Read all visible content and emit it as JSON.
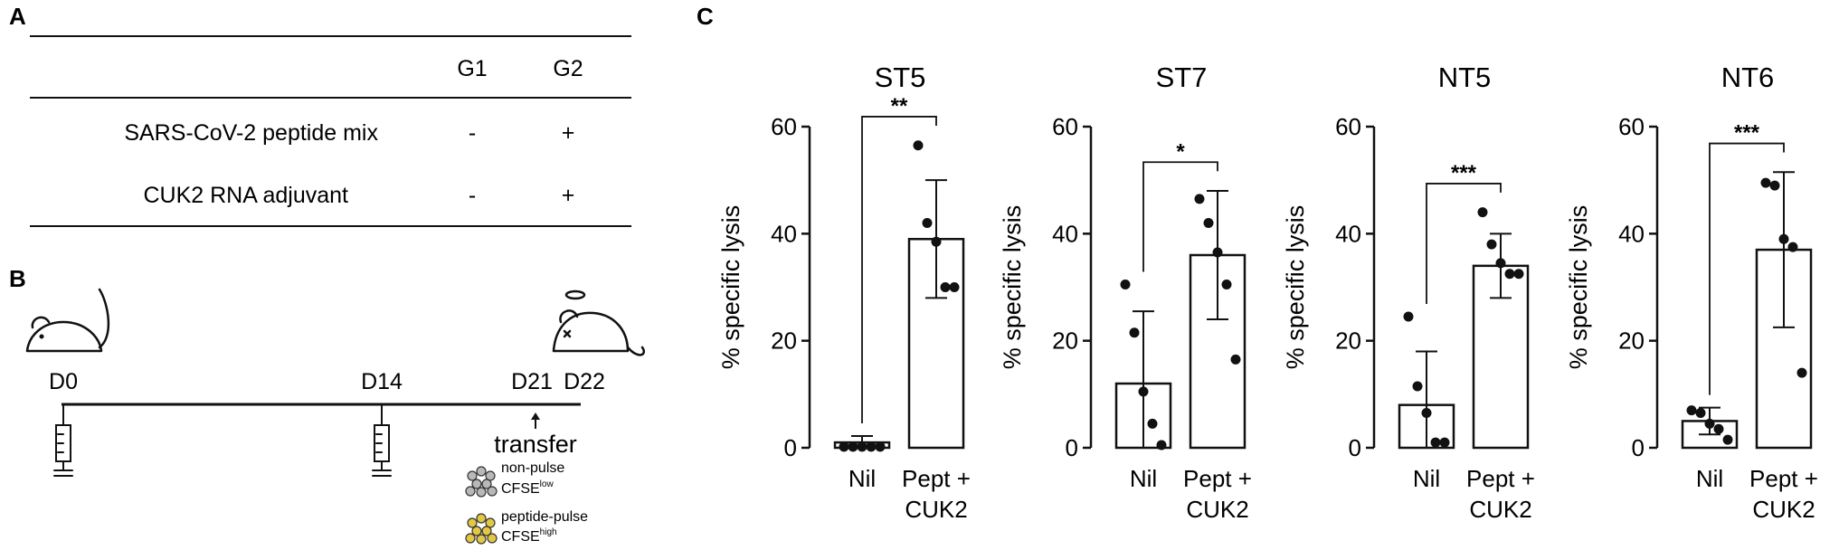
{
  "panels": {
    "a": {
      "letter": "A",
      "table": {
        "columns": [
          "G1",
          "G2"
        ],
        "rows": [
          {
            "label": "SARS-CoV-2 peptide mix",
            "values": [
              "-",
              "+"
            ]
          },
          {
            "label": "CUK2 RNA adjuvant",
            "values": [
              "-",
              "+"
            ]
          }
        ]
      }
    },
    "b": {
      "letter": "B",
      "days": [
        "D0",
        "D14",
        "D21",
        "D22"
      ],
      "transfer_label": "transfer",
      "legend": [
        {
          "line1": "non-pulse",
          "base": "CFSE",
          "sup": "low",
          "color": "#b8b8b8"
        },
        {
          "line1": "peptide-pulse",
          "base": "CFSE",
          "sup": "high",
          "color": "#e3c744"
        }
      ]
    },
    "c": {
      "letter": "C"
    }
  },
  "chart_data": [
    {
      "type": "bar",
      "title": "ST5",
      "ylabel": "% specific lysis",
      "ylim": [
        0,
        60
      ],
      "yticks": [
        0,
        20,
        40,
        60
      ],
      "categories": [
        "Nil",
        "Pept + CUK2"
      ],
      "category_lines": [
        [
          "Nil"
        ],
        [
          "Pept +",
          "CUK2"
        ]
      ],
      "means": [
        1.0,
        39.0
      ],
      "errors": [
        1.2,
        11.0
      ],
      "points": [
        [
          0.2,
          0.2,
          0.2,
          0.2,
          0.2
        ],
        [
          56.5,
          42.0,
          38.5,
          30.0,
          30.0
        ]
      ],
      "significance": "**"
    },
    {
      "type": "bar",
      "title": "ST7",
      "ylabel": "% specific lysis",
      "ylim": [
        0,
        60
      ],
      "yticks": [
        0,
        20,
        40,
        60
      ],
      "categories": [
        "Nil",
        "Pept + CUK2"
      ],
      "category_lines": [
        [
          "Nil"
        ],
        [
          "Pept +",
          "CUK2"
        ]
      ],
      "means": [
        12.0,
        36.0
      ],
      "errors": [
        13.5,
        12.0
      ],
      "points": [
        [
          30.5,
          21.5,
          10.5,
          4.5,
          0.5
        ],
        [
          46.5,
          42.0,
          36.5,
          30.5,
          16.5
        ]
      ],
      "significance": "*"
    },
    {
      "type": "bar",
      "title": "NT5",
      "ylabel": "% specific lysis",
      "ylim": [
        0,
        60
      ],
      "yticks": [
        0,
        20,
        40,
        60
      ],
      "categories": [
        "Nil",
        "Pept + CUK2"
      ],
      "category_lines": [
        [
          "Nil"
        ],
        [
          "Pept +",
          "CUK2"
        ]
      ],
      "means": [
        8.0,
        34.0
      ],
      "errors": [
        10.0,
        6.0
      ],
      "points": [
        [
          24.5,
          11.5,
          6.5,
          1.0,
          1.0
        ],
        [
          44.0,
          38.0,
          34.5,
          32.5,
          32.5
        ]
      ],
      "significance": "***"
    },
    {
      "type": "bar",
      "title": "NT6",
      "ylabel": "% specific lysis",
      "ylim": [
        0,
        60
      ],
      "yticks": [
        0,
        20,
        40,
        60
      ],
      "categories": [
        "Nil",
        "Pept + CUK2"
      ],
      "category_lines": [
        [
          "Nil"
        ],
        [
          "Pept +",
          "CUK2"
        ]
      ],
      "means": [
        5.0,
        37.0
      ],
      "errors": [
        2.5,
        14.5
      ],
      "points": [
        [
          7.0,
          6.5,
          4.5,
          3.5,
          1.5
        ],
        [
          49.5,
          49.0,
          39.0,
          37.5,
          14.0
        ]
      ],
      "significance": "***"
    }
  ]
}
